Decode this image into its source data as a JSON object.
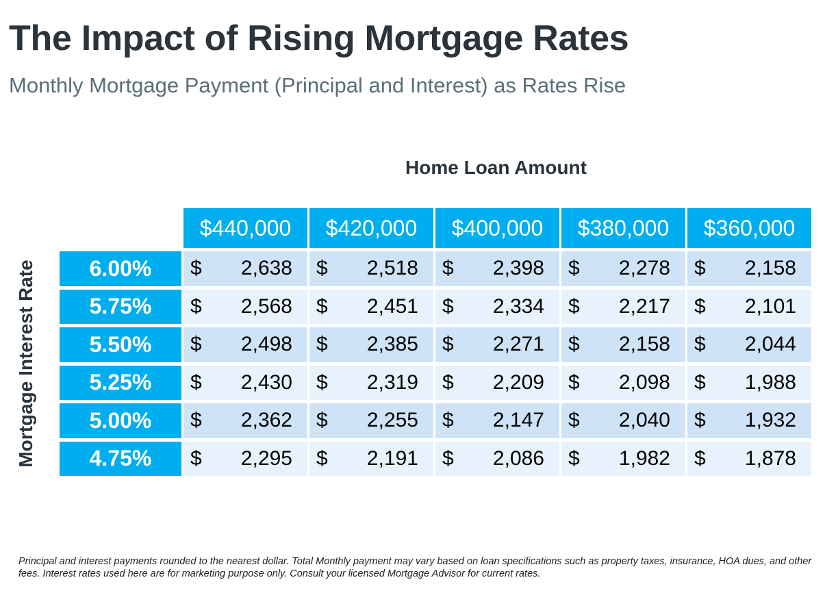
{
  "title": "The Impact of Rising Mortgage Rates",
  "subtitle": "Monthly Mortgage Payment (Principal and Interest) as Rates Rise",
  "column_axis_label": "Home Loan Amount",
  "row_axis_label": "Mortgage Interest Rate",
  "currency_symbol": "$",
  "footnote": "Principal and interest payments rounded to the nearest dollar. Total Monthly payment may vary based on loan specifications such as property taxes, insurance, HOA dues, and other fees. Interest rates used here are for marketing purpose only. Consult your licensed Mortgage Advisor for current rates.",
  "colors": {
    "accent": "#00aeef",
    "row_odd": "#cfe3f7",
    "row_even": "#e8f2fc",
    "title": "#2b333b",
    "subtitle": "#5a6e78"
  },
  "chart_data": {
    "type": "table",
    "title": "The Impact of Rising Mortgage Rates",
    "columns": [
      "$440,000",
      "$420,000",
      "$400,000",
      "$380,000",
      "$360,000"
    ],
    "rows": [
      {
        "rate": "6.00%",
        "values": [
          "2,638",
          "2,518",
          "2,398",
          "2,278",
          "2,158"
        ]
      },
      {
        "rate": "5.75%",
        "values": [
          "2,568",
          "2,451",
          "2,334",
          "2,217",
          "2,101"
        ]
      },
      {
        "rate": "5.50%",
        "values": [
          "2,498",
          "2,385",
          "2,271",
          "2,158",
          "2,044"
        ]
      },
      {
        "rate": "5.25%",
        "values": [
          "2,430",
          "2,319",
          "2,209",
          "2,098",
          "1,988"
        ]
      },
      {
        "rate": "5.00%",
        "values": [
          "2,362",
          "2,255",
          "2,147",
          "2,040",
          "1,932"
        ]
      },
      {
        "rate": "4.75%",
        "values": [
          "2,295",
          "2,191",
          "2,086",
          "1,982",
          "1,878"
        ]
      }
    ]
  }
}
